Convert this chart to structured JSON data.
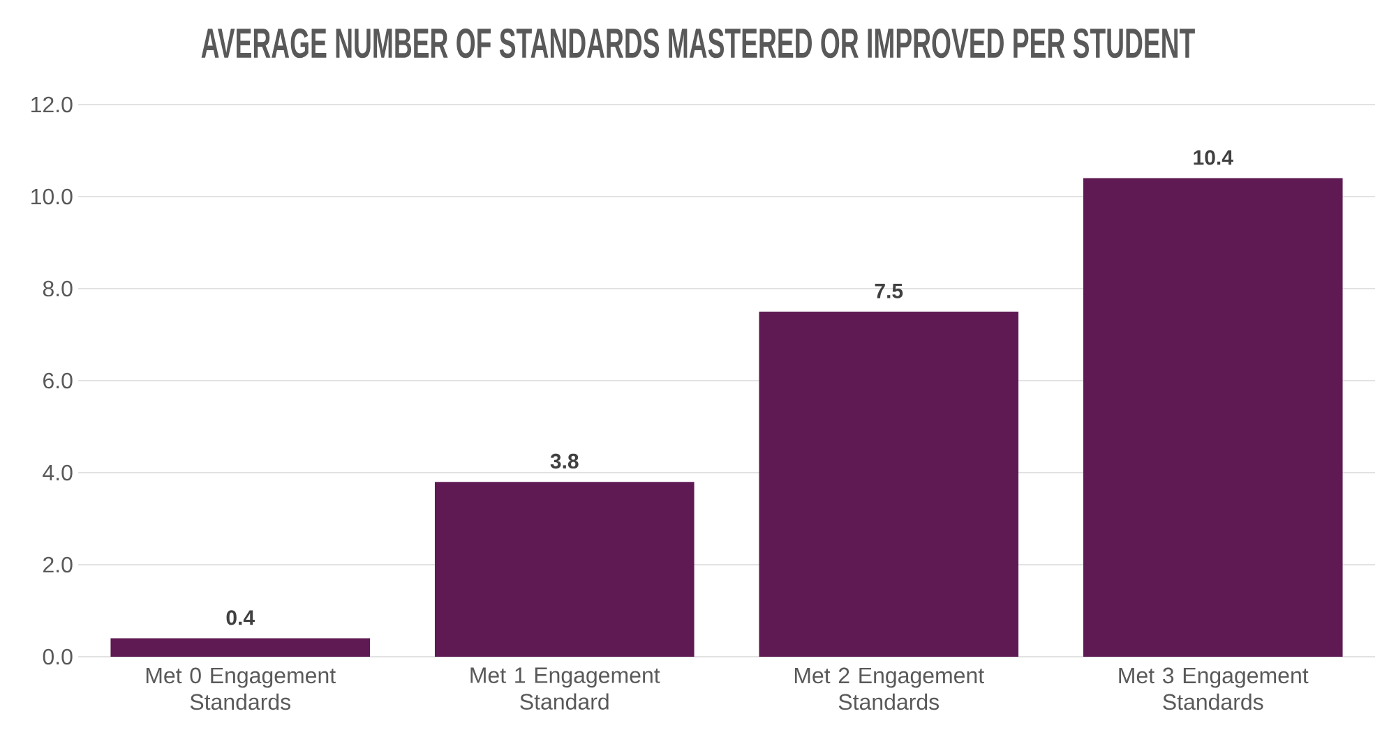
{
  "chart_data": {
    "type": "bar",
    "title": "AVERAGE NUMBER OF STANDARDS MASTERED OR IMPROVED PER STUDENT",
    "categories": [
      "Met 0 Engagement Standards",
      "Met 1 Engagement Standard",
      "Met 2 Engagement Standards",
      "Met 3 Engagement Standards"
    ],
    "values": [
      0.4,
      3.8,
      7.5,
      10.4
    ],
    "value_labels": [
      "0.4",
      "3.8",
      "7.5",
      "10.4"
    ],
    "color": "#5f1a54",
    "ylim": [
      0,
      12
    ],
    "yticks": [
      {
        "value": 0,
        "label": "0.0"
      },
      {
        "value": 2,
        "label": "2.0"
      },
      {
        "value": 4,
        "label": "4.0"
      },
      {
        "value": 6,
        "label": "6.0"
      },
      {
        "value": 8,
        "label": "8.0"
      },
      {
        "value": 10,
        "label": "10.0"
      },
      {
        "value": 12,
        "label": "12.0"
      }
    ],
    "grid": "y"
  }
}
